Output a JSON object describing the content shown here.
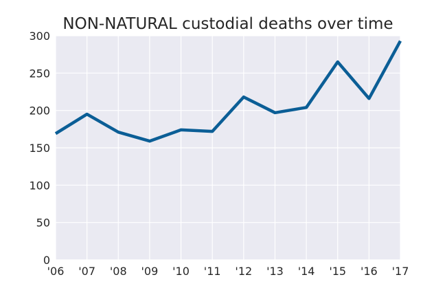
{
  "chart_data": {
    "type": "line",
    "title": "NON-NATURAL custodial deaths over time",
    "xlabel": "",
    "ylabel": "",
    "categories": [
      "'06",
      "'07",
      "'08",
      "'09",
      "'10",
      "'11",
      "'12",
      "'13",
      "'14",
      "'15",
      "'16",
      "'17"
    ],
    "series": [
      {
        "values": [
          169,
          195,
          171,
          159,
          174,
          172,
          218,
          197,
          204,
          265,
          216,
          293
        ]
      }
    ],
    "ylim": [
      0,
      300
    ],
    "yticks": [
      0,
      50,
      100,
      150,
      200,
      250,
      300
    ],
    "grid": true,
    "colors": {
      "line": "#0b5e96",
      "plot_background": "#eaeaf2",
      "grid": "#ffffff"
    }
  }
}
